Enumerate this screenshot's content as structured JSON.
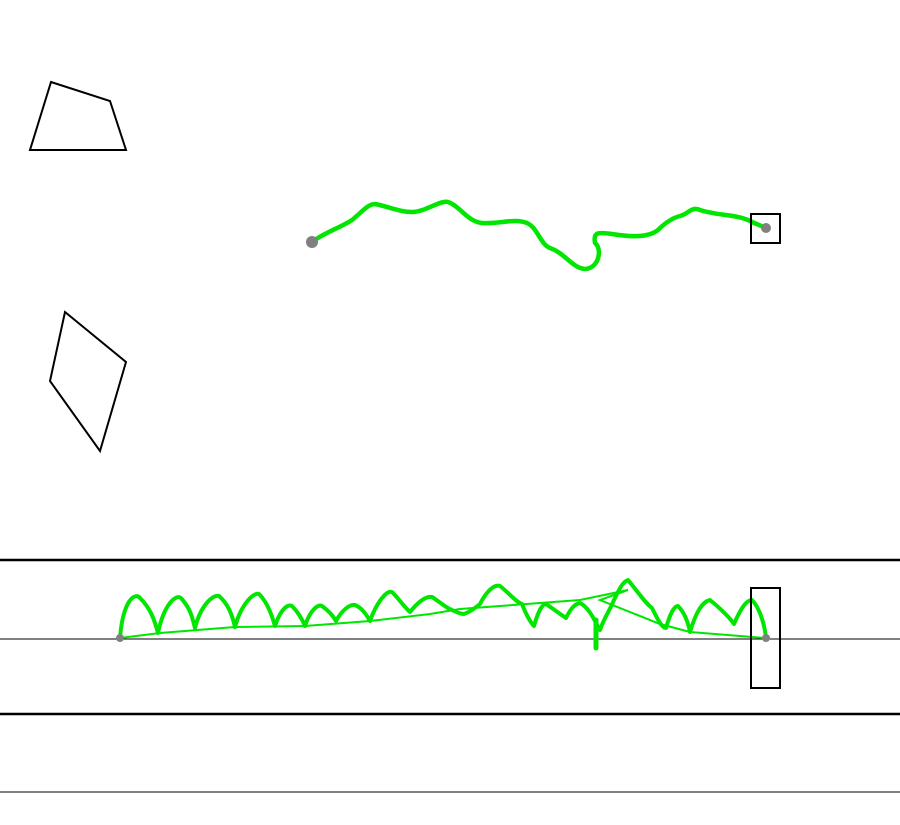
{
  "colors": {
    "background": "#ffffff",
    "outline": "#000000",
    "trail": "#00e600",
    "marker": "#808080",
    "rail": "#000000"
  },
  "scene": {
    "shapes": [
      {
        "name": "quadrilateral-obstacle",
        "kind": "polygon"
      },
      {
        "name": "kite-obstacle",
        "kind": "polygon"
      }
    ],
    "overhead_path": {
      "start_marker": "start-dot",
      "goal_marker": "goal-box"
    },
    "side_view": {
      "start_marker": "start-dot",
      "goal_marker": "goal-box"
    }
  }
}
